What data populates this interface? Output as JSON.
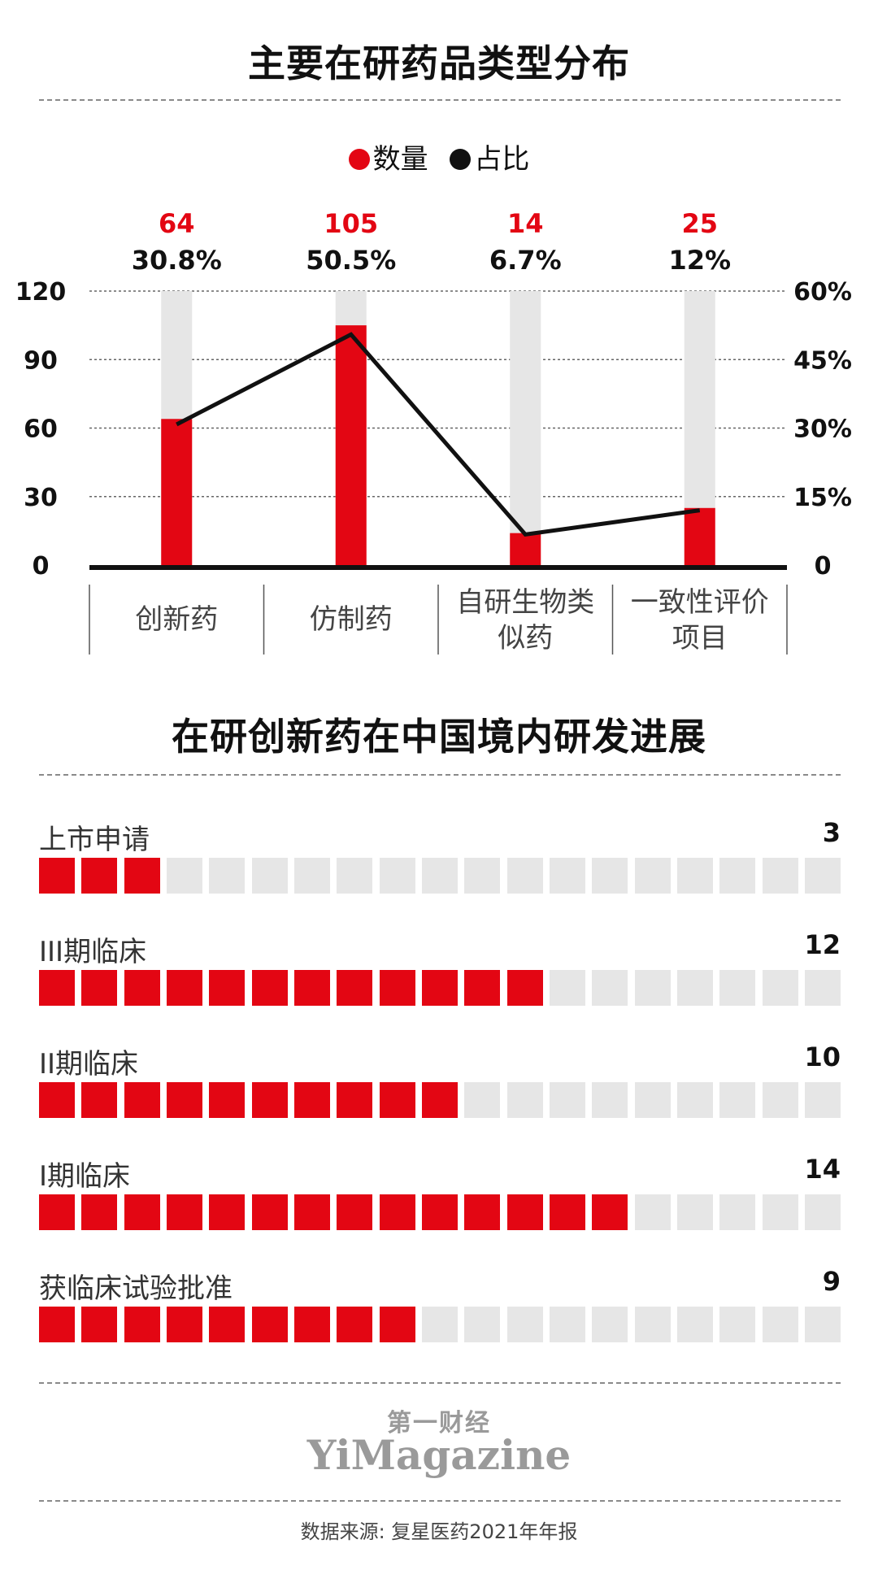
{
  "colors": {
    "red": "#e30613",
    "black": "#111111",
    "track": "#e6e6e6"
  },
  "chart_data": [
    {
      "type": "bar",
      "title": "主要在研药品类型分布",
      "categories": [
        "创新药",
        "仿制药",
        "自研生物类似药",
        "一致性评价项目"
      ],
      "category_lines": [
        [
          "创新药"
        ],
        [
          "仿制药"
        ],
        [
          "自研生物类",
          "似药"
        ],
        [
          "一致性评价",
          "项目"
        ]
      ],
      "series": [
        {
          "name": "数量",
          "type": "bar",
          "axis": "left",
          "values": [
            64,
            105,
            14,
            25
          ],
          "labels": [
            "64",
            "105",
            "14",
            "25"
          ]
        },
        {
          "name": "占比",
          "type": "line",
          "axis": "right",
          "values": [
            30.8,
            50.5,
            6.7,
            12
          ],
          "labels": [
            "30.8%",
            "50.5%",
            "6.7%",
            "12%"
          ]
        }
      ],
      "y_left": {
        "range": [
          0,
          120
        ],
        "ticks": [
          "0",
          "30",
          "60",
          "90",
          "120"
        ]
      },
      "y_right": {
        "range": [
          0,
          60
        ],
        "ticks": [
          "0",
          "15%",
          "30%",
          "45%",
          "60%"
        ]
      },
      "legend": "top-center",
      "grid": true
    },
    {
      "type": "bar",
      "title": "在研创新药在中国境内研发进展",
      "total_slots": 19,
      "rows": [
        {
          "label": "上市申请",
          "value": 3,
          "value_text": "3"
        },
        {
          "label": "III期临床",
          "value": 12,
          "value_text": "12"
        },
        {
          "label": "II期临床",
          "value": 10,
          "value_text": "10"
        },
        {
          "label": "I期临床",
          "value": 14,
          "value_text": "14"
        },
        {
          "label": "获临床试验批准",
          "value": 9,
          "value_text": "9"
        }
      ]
    }
  ],
  "legend": {
    "count_label": "数量",
    "ratio_label": "占比"
  },
  "brand": {
    "cn": "第一财经",
    "en": "YiMagazine"
  },
  "source": "数据来源: 复星医药2021年年报"
}
